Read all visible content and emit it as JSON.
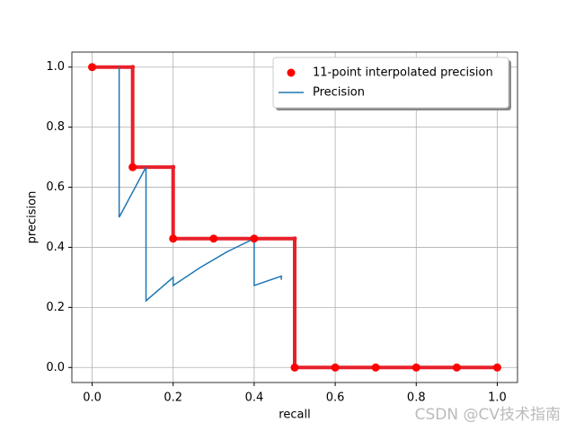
{
  "chart_data": {
    "type": "line",
    "xlabel": "recall",
    "ylabel": "precision",
    "xlim": [
      -0.05,
      1.05
    ],
    "ylim": [
      -0.05,
      1.05
    ],
    "xticks": [
      {
        "value": 0,
        "label": "0.0"
      },
      0.2,
      0.4,
      0.6,
      0.8,
      {
        "value": 1,
        "label": "1.0"
      }
    ],
    "yticks": [
      {
        "value": 0,
        "label": "0.0"
      },
      0.2,
      0.4,
      0.6,
      0.8,
      {
        "value": 1,
        "label": "1.0"
      }
    ],
    "grid": true,
    "legend": "upper right",
    "series": [
      {
        "name": "11-point interpolated precision",
        "type": "scatter",
        "color": "#ff0000",
        "x": [
          0,
          0.1,
          0.2,
          0.3,
          0.4,
          0.5,
          0.6,
          0.7,
          0.8,
          0.9,
          1.0
        ],
        "values": [
          1.0,
          0.667,
          0.429,
          0.429,
          0.429,
          0,
          0,
          0,
          0,
          0,
          0
        ]
      },
      {
        "type": "step",
        "color": "#e8202a",
        "x": [
          0,
          0.1,
          0.1,
          0.2,
          0.2,
          0.5,
          0.5,
          1.0
        ],
        "values": [
          1.0,
          1.0,
          0.667,
          0.667,
          0.429,
          0.429,
          0,
          0
        ]
      },
      {
        "name": "Precision",
        "type": "line",
        "color": "#1f77b4",
        "x": [
          0.0667,
          0.0667,
          0.133,
          0.133,
          0.2,
          0.2,
          0.267,
          0.333,
          0.4,
          0.4,
          0.467,
          0.467
        ],
        "values": [
          1.0,
          0.5,
          0.667,
          0.222,
          0.3,
          0.273,
          0.333,
          0.385,
          0.429,
          0.273,
          0.304,
          0.292
        ]
      }
    ],
    "watermark": "CSDN @CV技术指南"
  }
}
